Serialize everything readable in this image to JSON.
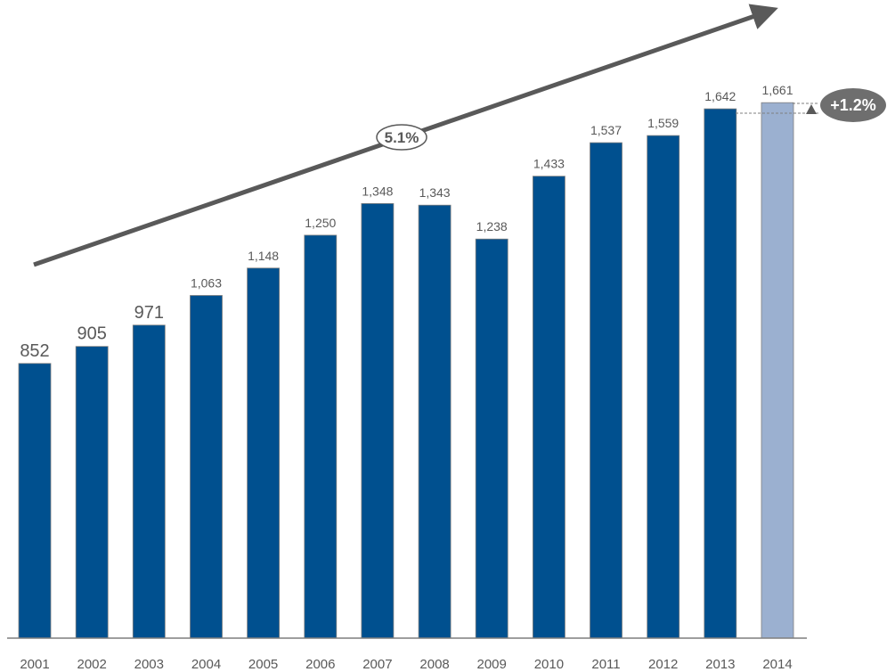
{
  "chart_data": {
    "type": "bar",
    "title": "",
    "xlabel": "",
    "ylabel": "",
    "categories": [
      "2001",
      "2002",
      "2003",
      "2004",
      "2005",
      "2006",
      "2007",
      "2008",
      "2009",
      "2010",
      "2011",
      "2012",
      "2013",
      "2014"
    ],
    "values": [
      852,
      905,
      971,
      1063,
      1148,
      1250,
      1348,
      1343,
      1238,
      1433,
      1537,
      1559,
      1642,
      1661
    ],
    "value_labels": [
      "852",
      "905",
      "971",
      "1,063",
      "1,148",
      "1,250",
      "1,348",
      "1,343",
      "1,238",
      "1,433",
      "1,537",
      "1,559",
      "1,642",
      "1,661"
    ],
    "highlighted_category": "2014",
    "ylim": [
      0,
      1661
    ],
    "grid": false,
    "legend": "none",
    "annotations": {
      "trend_label": "5.1%",
      "change_label": "+1.2%"
    },
    "colors": {
      "bar": "#00508F",
      "bar_highlight": "#9BB0D0",
      "trend_arrow": "#595959",
      "change_badge": "#6E6E6E",
      "axis": "#7F7F7F",
      "text": "#595959"
    }
  }
}
